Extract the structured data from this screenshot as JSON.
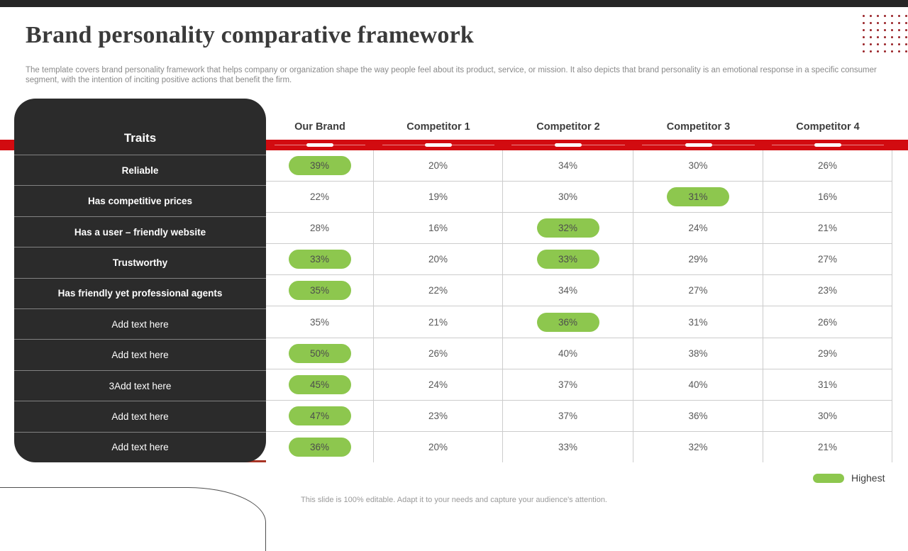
{
  "slide": {
    "title": "Brand personality comparative framework",
    "subtitle": "The template covers brand personality framework that helps company or organization shape the way people feel about its product, service, or mission. It also depicts that brand personality is an emotional response in a specific consumer segment, with the intention of inciting positive actions that benefit the firm.",
    "footer": "This slide is 100% editable. Adapt it to your needs and capture your audience's attention."
  },
  "legend": {
    "label": "Highest"
  },
  "decor": {
    "dot_rows": 6,
    "dot_cols": 7
  },
  "table": {
    "traits_header": "Traits",
    "columns": [
      "Our Brand",
      "Competitor 1",
      "Competitor 2",
      "Competitor 3",
      "Competitor 4"
    ],
    "rows": [
      {
        "label": "Reliable",
        "bold": true,
        "values": [
          "39%",
          "20%",
          "34%",
          "30%",
          "26%"
        ],
        "highlight": [
          0
        ]
      },
      {
        "label": "Has competitive prices",
        "bold": true,
        "values": [
          "22%",
          "19%",
          "30%",
          "31%",
          "16%"
        ],
        "highlight": [
          3
        ]
      },
      {
        "label": "Has a user – friendly website",
        "bold": true,
        "values": [
          "28%",
          "16%",
          "32%",
          "24%",
          "21%"
        ],
        "highlight": [
          2
        ]
      },
      {
        "label": "Trustworthy",
        "bold": true,
        "values": [
          "33%",
          "20%",
          "33%",
          "29%",
          "27%"
        ],
        "highlight": [
          0,
          2
        ]
      },
      {
        "label": "Has friendly yet professional agents",
        "bold": true,
        "values": [
          "35%",
          "22%",
          "34%",
          "27%",
          "23%"
        ],
        "highlight": [
          0
        ]
      },
      {
        "label": "Add text here",
        "bold": false,
        "values": [
          "35%",
          "21%",
          "36%",
          "31%",
          "26%"
        ],
        "highlight": [
          2
        ]
      },
      {
        "label": "Add text here",
        "bold": false,
        "values": [
          "50%",
          "26%",
          "40%",
          "38%",
          "29%"
        ],
        "highlight": [
          0
        ]
      },
      {
        "label": "3Add text here",
        "bold": false,
        "values": [
          "45%",
          "24%",
          "37%",
          "40%",
          "31%"
        ],
        "highlight": [
          0
        ]
      },
      {
        "label": "Add text here",
        "bold": false,
        "values": [
          "47%",
          "23%",
          "37%",
          "36%",
          "30%"
        ],
        "highlight": [
          0
        ]
      },
      {
        "label": "Add text here",
        "bold": false,
        "values": [
          "36%",
          "20%",
          "33%",
          "32%",
          "21%"
        ],
        "highlight": [
          0
        ]
      }
    ]
  },
  "colors": {
    "accent_red": "#d20b10",
    "dark_panel": "#2b2b2b",
    "highlight_green": "#8dc74e",
    "bottom_line_red": "#a83425",
    "dot_red": "#992227"
  }
}
